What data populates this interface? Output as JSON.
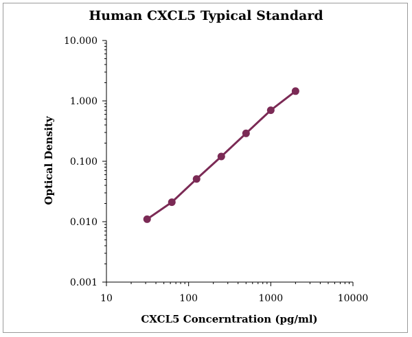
{
  "chart_data": {
    "type": "line",
    "title": "Human CXCL5 Typical Standard",
    "xlabel": "CXCL5 Concerntration (pg/ml)",
    "ylabel": "Optical Density",
    "x_scale": "log",
    "y_scale": "log",
    "xlim": [
      10,
      10000
    ],
    "ylim": [
      0.001,
      10
    ],
    "x_ticks": [
      "10",
      "100",
      "1000",
      "10000"
    ],
    "y_ticks": [
      "0.001",
      "0.010",
      "0.100",
      "1.000",
      "10.000"
    ],
    "grid": false,
    "legend": "none",
    "series": [
      {
        "color": "#7b2a55",
        "x": [
          31.25,
          62.5,
          125,
          250,
          500,
          1000,
          2000
        ],
        "y": [
          0.011,
          0.021,
          0.051,
          0.12,
          0.29,
          0.7,
          1.45
        ]
      }
    ]
  }
}
